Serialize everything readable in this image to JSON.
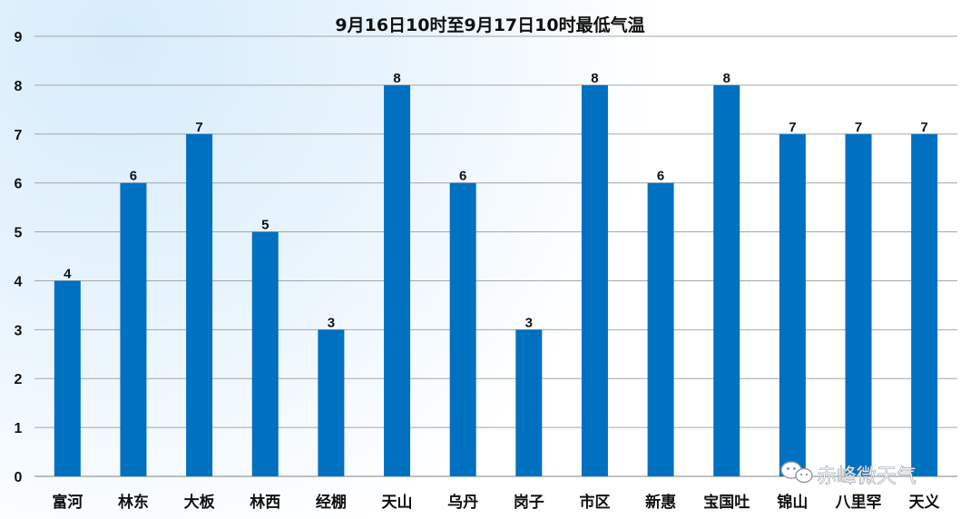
{
  "chart_data": {
    "type": "bar",
    "title": "9月16日10时至9月17日10时最低气温",
    "categories": [
      "富河",
      "林东",
      "大板",
      "林西",
      "经棚",
      "天山",
      "乌丹",
      "岗子",
      "市区",
      "新惠",
      "宝国吐",
      "锦山",
      "八里罕",
      "天义"
    ],
    "values": [
      4,
      6,
      7,
      5,
      3,
      8,
      6,
      3,
      8,
      6,
      8,
      7,
      7,
      7
    ],
    "xlabel": "",
    "ylabel": "",
    "ylim": [
      0,
      9
    ],
    "yticks": [
      0,
      1,
      2,
      3,
      4,
      5,
      6,
      7,
      8,
      9
    ],
    "grid": true,
    "legend": "none",
    "bar_color": "#0070C0",
    "grid_color": "#a6a6a6"
  },
  "watermark": {
    "text": "赤峰微天气",
    "icon": "wechat-icon"
  }
}
